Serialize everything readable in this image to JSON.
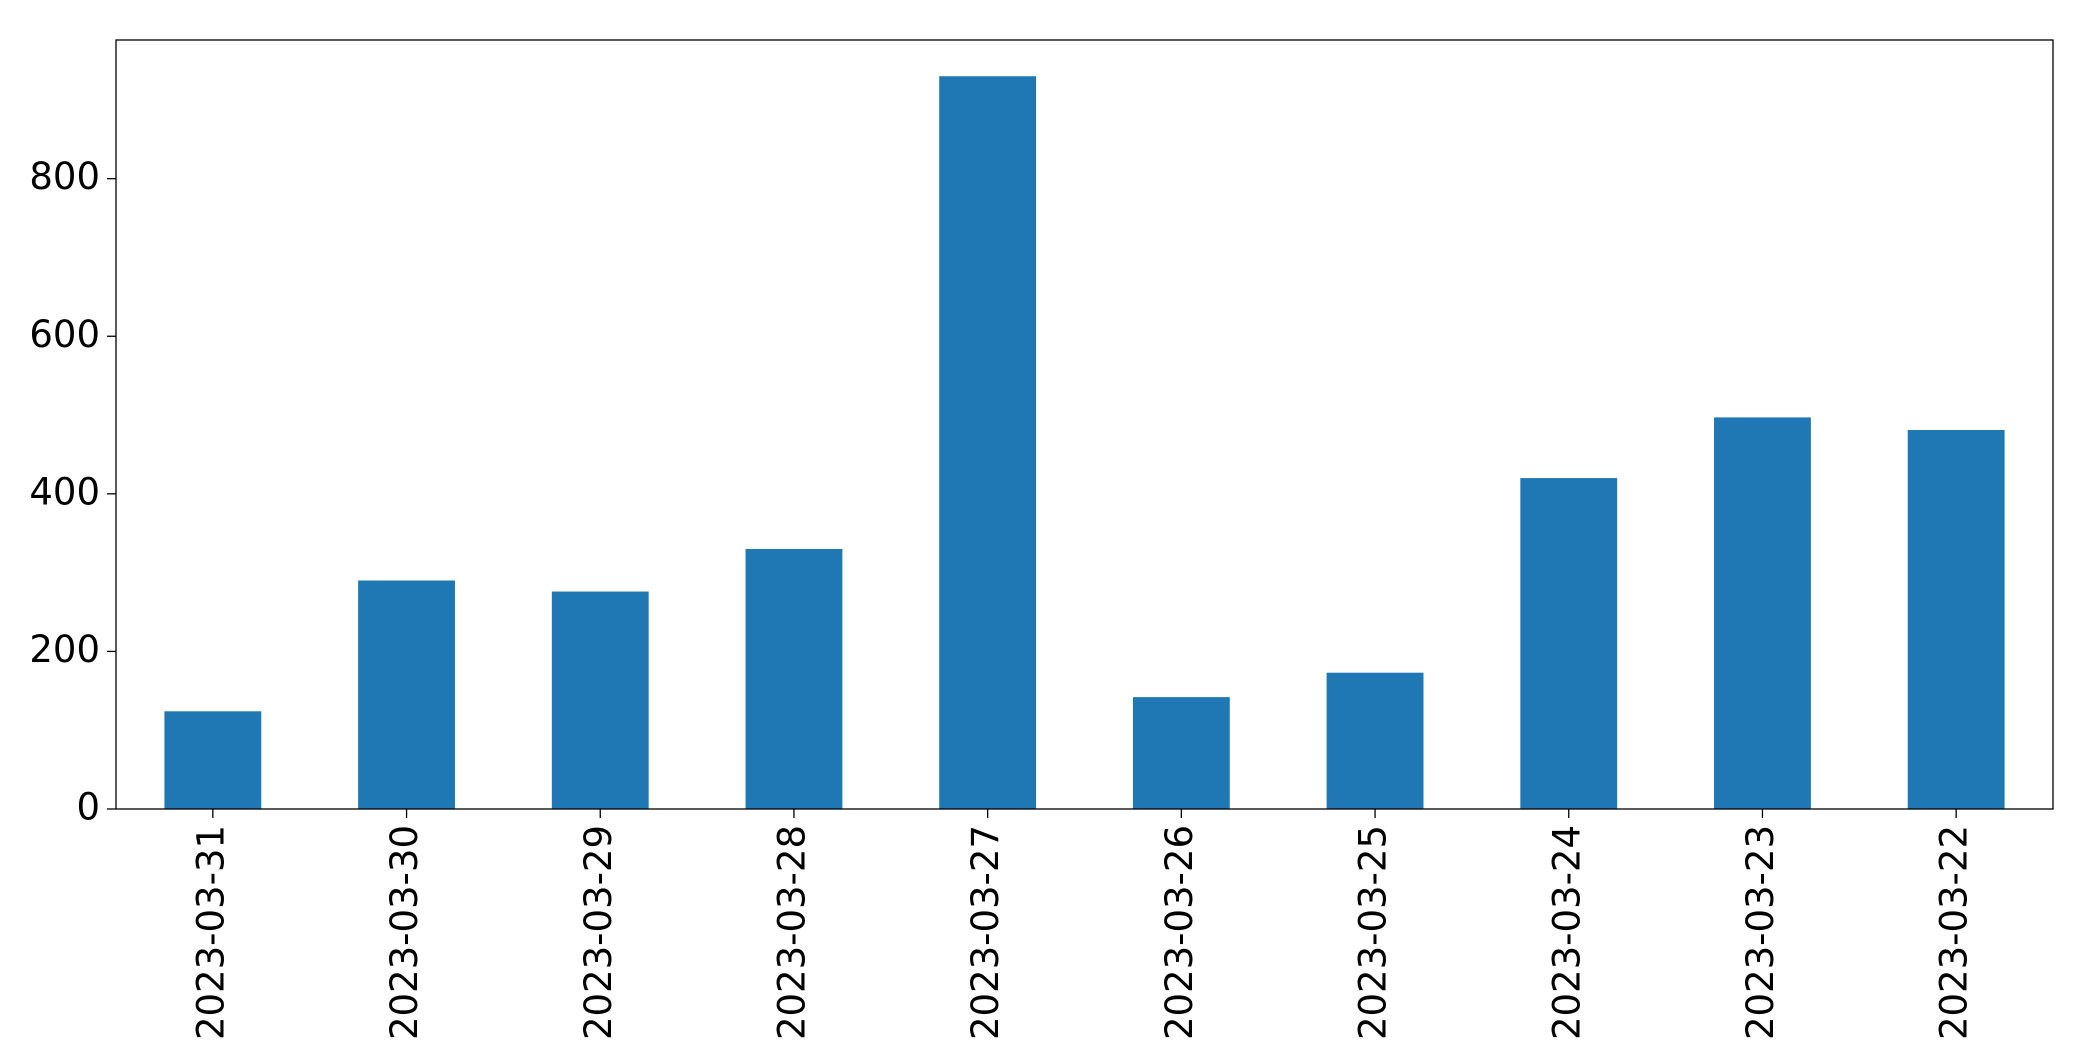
{
  "chart_data": {
    "type": "bar",
    "categories": [
      "2023-03-31",
      "2023-03-30",
      "2023-03-29",
      "2023-03-28",
      "2023-03-27",
      "2023-03-26",
      "2023-03-25",
      "2023-03-24",
      "2023-03-23",
      "2023-03-22"
    ],
    "values": [
      124,
      290,
      276,
      330,
      930,
      142,
      173,
      420,
      497,
      481
    ],
    "color": "#1f77b4",
    "ylim": [
      0,
      976
    ],
    "yticks": [
      0,
      200,
      400,
      600,
      800
    ],
    "grid": false
  }
}
